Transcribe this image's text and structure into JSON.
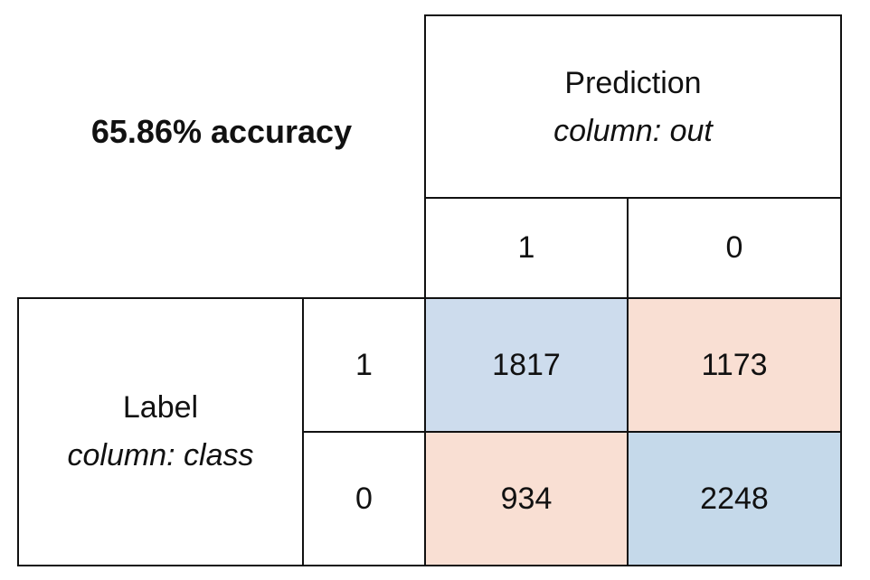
{
  "chart_data": {
    "type": "table",
    "title": "65.86% accuracy",
    "prediction_header": "Prediction",
    "prediction_column": "column: out",
    "label_header": "Label",
    "label_column": "column: class",
    "prediction_classes": [
      "1",
      "0"
    ],
    "label_classes": [
      "1",
      "0"
    ],
    "matrix": [
      [
        1817,
        1173
      ],
      [
        934,
        2248
      ]
    ],
    "colors": {
      "correct": "#cddced",
      "incorrect": "#f9dfd3",
      "correct_strong": "#c5d9ea",
      "border": "#111111"
    }
  }
}
